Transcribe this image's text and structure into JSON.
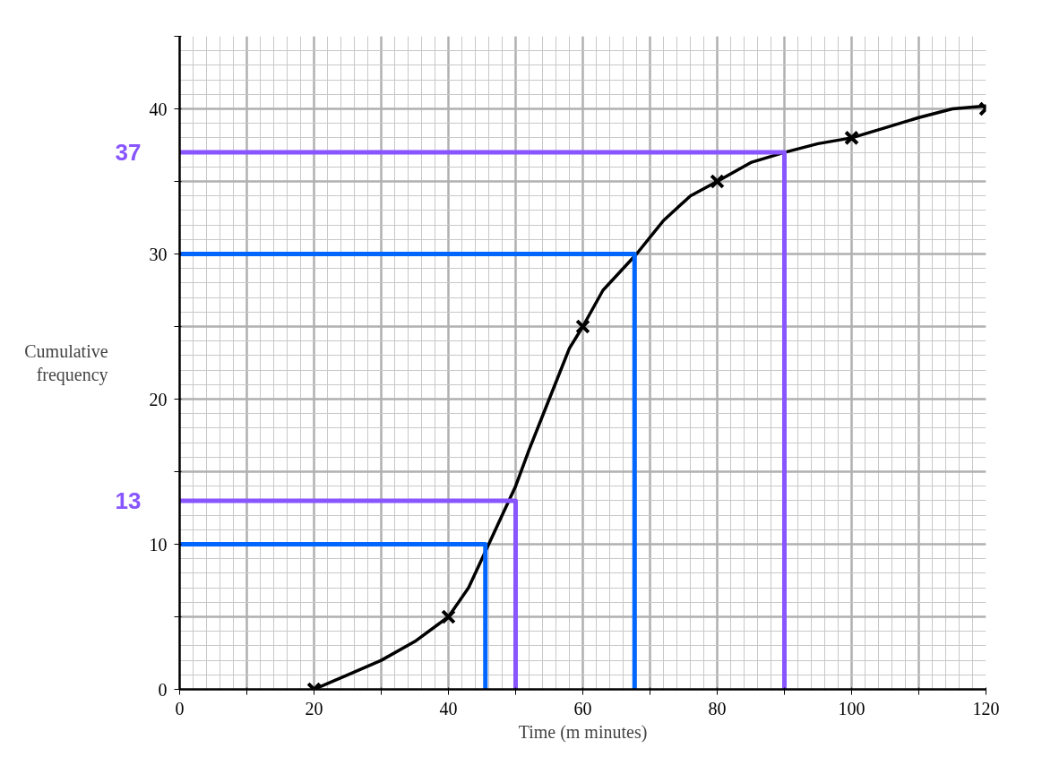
{
  "chart_data": {
    "type": "line",
    "xlabel": "Time (m minutes)",
    "ylabel": "Cumulative frequency",
    "xlim": [
      0,
      120
    ],
    "ylim": [
      0,
      45
    ],
    "xticks": [
      0,
      {
        "value": 10,
        "label": null
      },
      20,
      {
        "value": 30,
        "label": null
      },
      40,
      {
        "value": 50,
        "label": null
      },
      60,
      {
        "value": 70,
        "label": null
      },
      80,
      {
        "value": 90,
        "label": null
      },
      100,
      {
        "value": 110,
        "label": null
      },
      120
    ],
    "yticks": [
      0,
      {
        "value": 5,
        "label": null
      },
      10,
      {
        "value": 15,
        "label": null
      },
      20,
      {
        "value": 25,
        "label": null
      },
      30,
      {
        "value": 35,
        "label": null
      },
      40,
      {
        "value": 45,
        "label": null
      }
    ],
    "grid": true,
    "series": [
      {
        "color": "#000000",
        "x": [
          20,
          25,
          30,
          35,
          40,
          43,
          46,
          48,
          50,
          52,
          55,
          58,
          60,
          63,
          68,
          72,
          76,
          80,
          85,
          90,
          95,
          100,
          105,
          110,
          115,
          120
        ],
        "values": [
          0,
          1,
          2,
          3.3,
          5,
          7,
          10,
          12,
          14,
          16.5,
          20,
          23.5,
          25,
          27.5,
          30,
          32.3,
          34,
          35,
          36.3,
          37,
          37.6,
          38,
          38.7,
          39.4,
          40,
          40.2
        ]
      },
      {
        "type": "scatter",
        "marker": "cross",
        "color": "#000000",
        "x": [
          20,
          40,
          60,
          80,
          100,
          120
        ],
        "values": [
          0,
          5,
          25,
          35,
          38,
          40
        ]
      },
      {
        "color": "#0066ff",
        "x": [
          0,
          45.5,
          45.5
        ],
        "values": [
          10,
          10,
          0
        ]
      },
      {
        "color": "#0066ff",
        "x": [
          0,
          67.7,
          67.7
        ],
        "values": [
          30,
          30,
          0
        ]
      },
      {
        "name": "13",
        "color": "#8855ff",
        "x": [
          0,
          50,
          50
        ],
        "values": [
          13,
          13,
          0
        ]
      },
      {
        "name": "37",
        "color": "#8855ff",
        "x": [
          0,
          90,
          90
        ],
        "values": [
          37,
          37,
          0
        ]
      }
    ]
  }
}
